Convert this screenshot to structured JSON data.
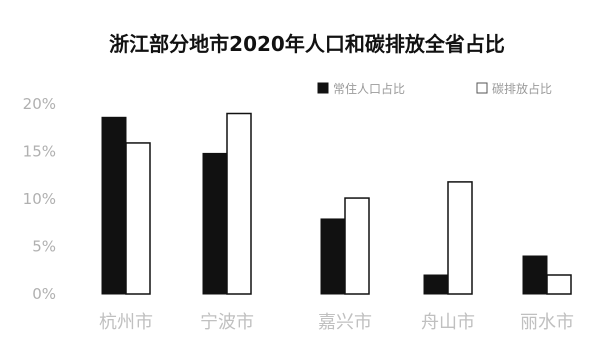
{
  "chart_data": {
    "type": "bar",
    "title": "浙江部分地市2020年人口和碳排放全省占比",
    "categories": [
      "杭州市",
      "宁波市",
      "嘉兴市",
      "舟山市",
      "丽水市"
    ],
    "series": [
      {
        "name": "常住人口占比",
        "values": [
          18.6,
          14.8,
          7.9,
          2.0,
          4.0
        ],
        "color": "#111111"
      },
      {
        "name": "碳排放占比",
        "values": [
          15.9,
          19.0,
          10.1,
          11.8,
          2.0
        ],
        "color": "#ffffff"
      }
    ],
    "yticks": [
      "0%",
      "5%",
      "10%",
      "15%",
      "20%"
    ],
    "ylim": [
      0,
      20
    ],
    "grid": false,
    "legend_position": "top-right"
  }
}
